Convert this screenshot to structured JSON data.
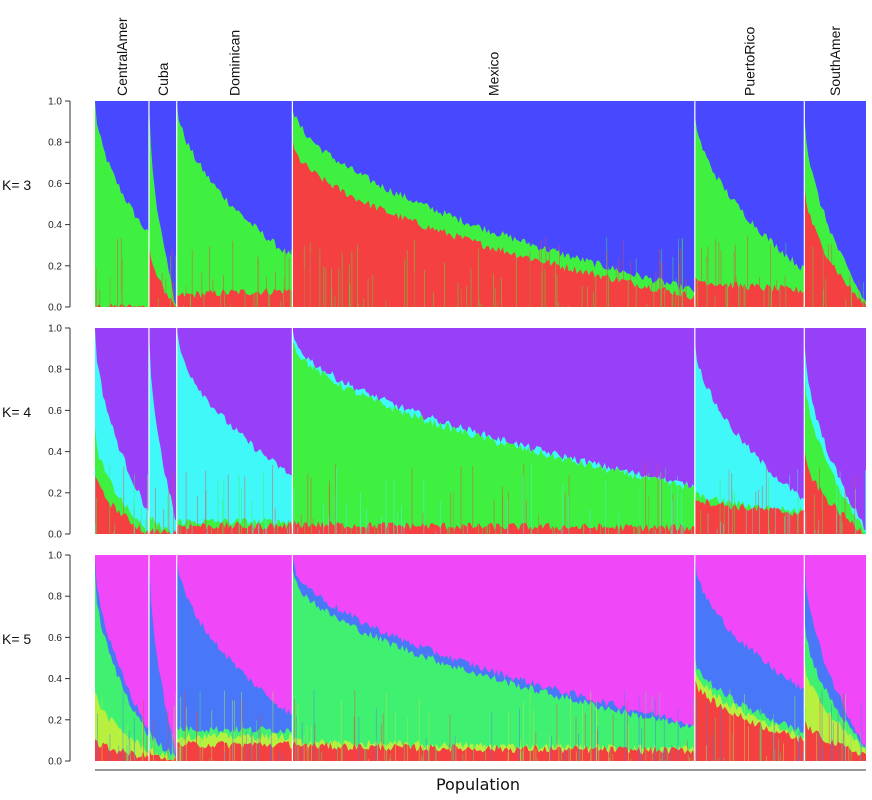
{
  "chart_data": {
    "type": "area",
    "xlabel": "Population",
    "y_ticks": [
      "0.0",
      "0.2",
      "0.4",
      "0.6",
      "0.8",
      "1.0"
    ],
    "ylim": [
      0,
      1
    ],
    "populations": [
      {
        "name": "CentralAmer",
        "share": 0.07
      },
      {
        "name": "Cuba",
        "share": 0.036
      },
      {
        "name": "Dominican",
        "share": 0.15
      },
      {
        "name": "Mexico",
        "share": 0.522
      },
      {
        "name": "PuertoRico",
        "share": 0.142
      },
      {
        "name": "SouthAmer",
        "share": 0.08
      }
    ],
    "panels": [
      {
        "label": "K= 3",
        "colors": [
          "#f44040",
          "#40f040",
          "#4848ff"
        ],
        "groups": [
          {
            "start": [
              0.0,
              1.0
            ],
            "end": [
              0.0,
              0.35
            ]
          },
          {
            "start": [
              0.3,
              1.0
            ],
            "end": [
              0.0,
              0.0
            ]
          },
          {
            "start": [
              0.05,
              1.0
            ],
            "end": [
              0.08,
              0.24
            ]
          },
          {
            "start": [
              0.8,
              0.98
            ],
            "end": [
              0.05,
              0.08
            ]
          },
          {
            "start": [
              0.14,
              0.95
            ],
            "end": [
              0.08,
              0.18
            ]
          },
          {
            "start": [
              0.6,
              0.95
            ],
            "end": [
              0.0,
              0.02
            ]
          }
        ]
      },
      {
        "label": "K= 4",
        "colors": [
          "#f44040",
          "#40f040",
          "#40f8f8",
          "#9840f8"
        ],
        "groups": [
          {
            "start": [
              0.3,
              0.5,
              1.0
            ],
            "end": [
              0.0,
              0.0,
              0.1
            ]
          },
          {
            "start": [
              0.02,
              0.1,
              1.0
            ],
            "end": [
              0.0,
              0.0,
              0.05
            ]
          },
          {
            "start": [
              0.04,
              0.06,
              1.0
            ],
            "end": [
              0.04,
              0.06,
              0.28
            ]
          },
          {
            "start": [
              0.05,
              0.95,
              0.98
            ],
            "end": [
              0.03,
              0.22,
              0.23
            ]
          },
          {
            "start": [
              0.18,
              0.2,
              0.95
            ],
            "end": [
              0.1,
              0.11,
              0.16
            ]
          },
          {
            "start": [
              0.4,
              0.8,
              0.95
            ],
            "end": [
              0.0,
              0.01,
              0.02
            ]
          }
        ]
      },
      {
        "label": "K= 5",
        "colors": [
          "#f44040",
          "#b8f040",
          "#40f070",
          "#4878f8",
          "#f048f8"
        ],
        "groups": [
          {
            "start": [
              0.1,
              0.35,
              0.9,
              1.0
            ],
            "end": [
              0.02,
              0.05,
              0.12,
              0.15
            ]
          },
          {
            "start": [
              0.05,
              0.07,
              0.15,
              1.0
            ],
            "end": [
              0.0,
              0.01,
              0.03,
              0.03
            ]
          },
          {
            "start": [
              0.08,
              0.12,
              0.16,
              1.0
            ],
            "end": [
              0.08,
              0.12,
              0.15,
              0.22
            ]
          },
          {
            "start": [
              0.08,
              0.1,
              0.92,
              0.98
            ],
            "end": [
              0.05,
              0.06,
              0.16,
              0.18
            ]
          },
          {
            "start": [
              0.4,
              0.45,
              0.5,
              0.98
            ],
            "end": [
              0.1,
              0.12,
              0.14,
              0.34
            ]
          },
          {
            "start": [
              0.2,
              0.5,
              0.7,
              0.98
            ],
            "end": [
              0.03,
              0.05,
              0.06,
              0.07
            ]
          }
        ]
      }
    ]
  }
}
